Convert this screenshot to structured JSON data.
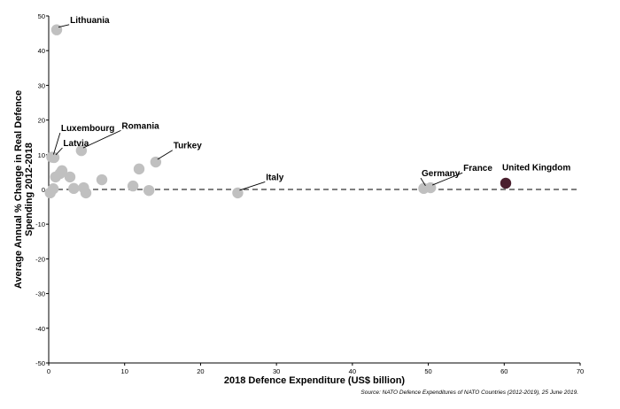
{
  "chart_data": {
    "type": "scatter",
    "xlabel": "2018 Defence Expenditure (US$ billion)",
    "ylabel": [
      "Average Annual % Change in Real Defence",
      "Spending 2012-2018"
    ],
    "xlim": [
      0,
      70
    ],
    "ylim": [
      -50,
      50
    ],
    "xticks": [
      0,
      10,
      20,
      30,
      40,
      50,
      60,
      70
    ],
    "yticks": [
      -50,
      -40,
      -30,
      -20,
      -10,
      0,
      10,
      20,
      30,
      40,
      50
    ],
    "source": "Source: NATO Defence Expenditures of NATO Countries (2012-2019), 25 June 2019.",
    "colors": {
      "point": "#c0c0c0",
      "highlight": "#4a1f2e"
    },
    "points": [
      {
        "label": "Lithuania",
        "x": 1.05,
        "y": 46,
        "lx": 2.7,
        "ly": 48
      },
      {
        "label": "Luxembourg",
        "x": 0.4,
        "y": 9.3,
        "lx": 1.5,
        "ly": 16.8
      },
      {
        "label": "Latvia",
        "x": 0.7,
        "y": 9.2,
        "lx": 1.8,
        "ly": 12.5
      },
      {
        "label": "Romania",
        "x": 4.3,
        "y": 11.2,
        "lx": 9.5,
        "ly": 17.5
      },
      {
        "label": "Turkey",
        "x": 14.1,
        "y": 7.9,
        "lx": 16.3,
        "ly": 11.8
      },
      {
        "label": "Italy",
        "x": 24.9,
        "y": -1,
        "lx": 28.5,
        "ly": 2.7
      },
      {
        "label": "Germany",
        "x": 49.4,
        "y": 0.3,
        "lx": 49,
        "ly": 3.8
      },
      {
        "label": "France",
        "x": 50.3,
        "y": 0.5,
        "lx": 54.5,
        "ly": 5.3
      },
      {
        "label": "United Kingdom",
        "x": 60.2,
        "y": 1.8,
        "lx": 60.2,
        "ly": 5.5,
        "highlight": true
      },
      {
        "label": "",
        "x": 0.2,
        "y": -1
      },
      {
        "label": "",
        "x": 0.6,
        "y": 0.2
      },
      {
        "label": "",
        "x": 0.9,
        "y": 3.6
      },
      {
        "label": "",
        "x": 1.5,
        "y": 4.6
      },
      {
        "label": "",
        "x": 1.75,
        "y": 5.4
      },
      {
        "label": "",
        "x": 2.8,
        "y": 3.6
      },
      {
        "label": "",
        "x": 3.3,
        "y": 0.3
      },
      {
        "label": "",
        "x": 4.6,
        "y": 0.5
      },
      {
        "label": "",
        "x": 4.9,
        "y": -1
      },
      {
        "label": "",
        "x": 7,
        "y": 2.8
      },
      {
        "label": "",
        "x": 11.1,
        "y": 1
      },
      {
        "label": "",
        "x": 11.9,
        "y": 5.9
      },
      {
        "label": "",
        "x": 13.2,
        "y": -0.3
      }
    ]
  }
}
